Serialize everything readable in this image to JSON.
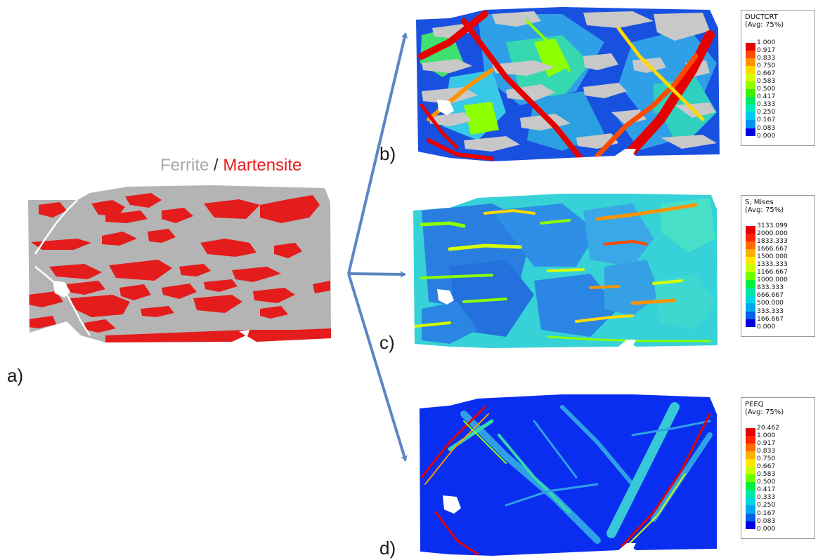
{
  "title": {
    "ferrite": "Ferrite",
    "separator": "/",
    "martensite": "Martensite"
  },
  "panel_labels": {
    "a": "a)",
    "b": "b)",
    "c": "c)",
    "d": "d)"
  },
  "colors": {
    "ferrite": "#b4b4b4",
    "martensite": "#e41c1c",
    "arrow": "#5b86c2",
    "contour_scale": [
      "#e60000",
      "#ff4a00",
      "#ff9400",
      "#ffd800",
      "#d8ff00",
      "#8cff00",
      "#3cf000",
      "#00e864",
      "#00e8c0",
      "#00c8f0",
      "#0090f0",
      "#0050e8",
      "#0000e0"
    ]
  },
  "legends": {
    "ductcrt": {
      "title": "DUCTCRT",
      "subtitle": "(Avg: 75%)",
      "values": [
        "1.000",
        "0.917",
        "0.833",
        "0.750",
        "0.667",
        "0.583",
        "0.500",
        "0.417",
        "0.333",
        "0.250",
        "0.167",
        "0.083",
        "0.000"
      ]
    },
    "mises": {
      "title": "S, Mises",
      "subtitle": "(Avg: 75%)",
      "values": [
        "3133.099",
        "2000.000",
        "1833.333",
        "1666.667",
        "1500.000",
        "1333.333",
        "1166.667",
        "1000.000",
        "833.333",
        "666.667",
        "500.000",
        "333.333",
        "166.667",
        "0.000"
      ]
    },
    "peeq": {
      "title": "PEEQ",
      "subtitle": "(Avg: 75%)",
      "values": [
        "20.462",
        "1.000",
        "0.917",
        "0.833",
        "0.750",
        "0.667",
        "0.583",
        "0.500",
        "0.417",
        "0.333",
        "0.250",
        "0.167",
        "0.083",
        "0.000"
      ]
    }
  }
}
